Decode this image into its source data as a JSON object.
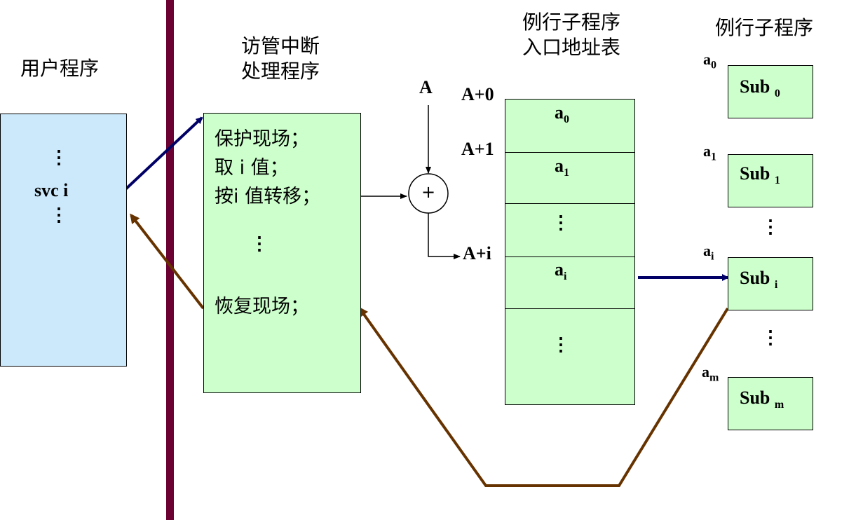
{
  "user_program": {
    "title": "用户程序",
    "dots_top": "⋮",
    "call": "svc i",
    "dots_bottom": "⋮"
  },
  "handler": {
    "title_line1": "访管中断",
    "title_line2": "处理程序",
    "lines": [
      "保护现场；",
      "取 i 值；",
      "按i 值转移；"
    ],
    "dots": "⋮",
    "restore": "恢复现场；"
  },
  "adder": {
    "input_label": "A",
    "symbol": "+"
  },
  "entry_table": {
    "title_line1": "例行子程序",
    "title_line2": "入口地址表",
    "row_labels": [
      "A+0",
      "A+1",
      "A+i"
    ],
    "cells": [
      {
        "base": "a",
        "sub": "0"
      },
      {
        "base": "a",
        "sub": "1"
      },
      {
        "base": "⋮",
        "sub": ""
      },
      {
        "base": "a",
        "sub": "i"
      },
      {
        "base": "⋮",
        "sub": ""
      }
    ]
  },
  "subroutines": {
    "title": "例行子程序",
    "items": [
      {
        "addr": "a",
        "addr_sub": "0",
        "name": "Sub",
        "name_sub": "0"
      },
      {
        "addr": "a",
        "addr_sub": "1",
        "name": "Sub",
        "name_sub": "1"
      },
      {
        "addr": "a",
        "addr_sub": "i",
        "name": "Sub",
        "name_sub": "i"
      },
      {
        "addr": "a",
        "addr_sub": "m",
        "name": "Sub",
        "name_sub": "m"
      }
    ],
    "dots": "⋮"
  },
  "colors": {
    "divider": "#6b0033",
    "call_arrow": "#000066",
    "return_arrow": "#663300",
    "user_box": "#cce9fb",
    "green_box": "#ccffcc"
  }
}
